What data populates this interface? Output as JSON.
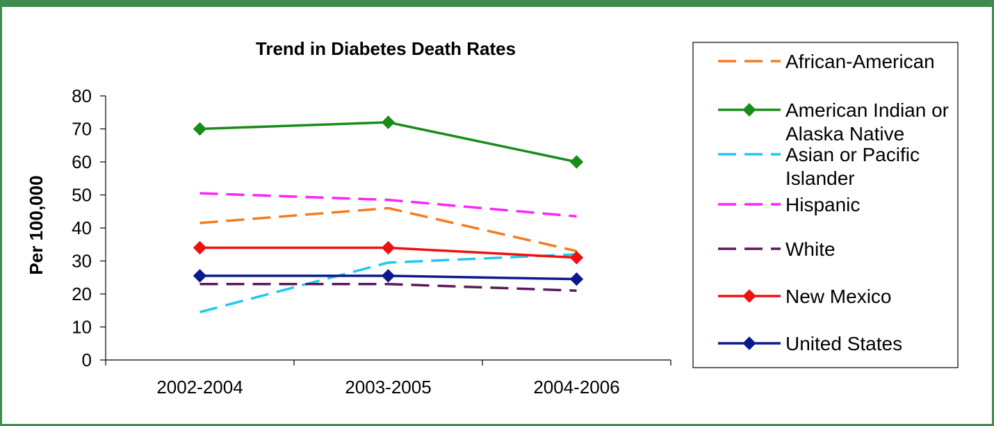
{
  "chart_data": {
    "type": "line",
    "title": "Trend in Diabetes Death Rates",
    "xlabel": "",
    "ylabel": "Per 100,000",
    "ylim": [
      0,
      80
    ],
    "yticks": [
      0,
      10,
      20,
      30,
      40,
      50,
      60,
      70,
      80
    ],
    "categories": [
      "2002-2004",
      "2003-2005",
      "2004-2006"
    ],
    "legend_position": "right",
    "series": [
      {
        "name": "African-American",
        "values": [
          41.5,
          46,
          33
        ],
        "color": "#f47b20",
        "style": "dashed",
        "marker": "none"
      },
      {
        "name": "American Indian or Alaska Native",
        "legend_lines": [
          "American Indian or",
          "Alaska Native"
        ],
        "values": [
          70,
          72,
          60
        ],
        "color": "#1a8c1a",
        "style": "solid",
        "marker": "diamond"
      },
      {
        "name": "Asian or Pacific Islander",
        "legend_lines": [
          "Asian or Pacific",
          "Islander"
        ],
        "values": [
          14.5,
          29.5,
          32
        ],
        "color": "#1ec8f0",
        "style": "dashed",
        "marker": "none"
      },
      {
        "name": "Hispanic",
        "values": [
          50.5,
          48.5,
          43.5
        ],
        "color": "#ff22ff",
        "style": "dashed",
        "marker": "none"
      },
      {
        "name": "White",
        "values": [
          23,
          23,
          21
        ],
        "color": "#5a1a5a",
        "style": "dashed",
        "marker": "none"
      },
      {
        "name": "New Mexico",
        "values": [
          34,
          34,
          31
        ],
        "color": "#f01010",
        "style": "solid",
        "marker": "diamond"
      },
      {
        "name": "United States",
        "values": [
          25.5,
          25.5,
          24.5
        ],
        "color": "#0a1a8c",
        "style": "solid",
        "marker": "diamond"
      }
    ]
  }
}
